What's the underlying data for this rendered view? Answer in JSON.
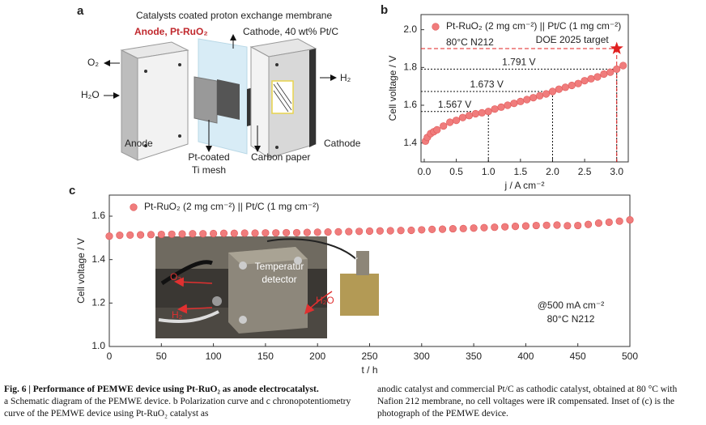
{
  "panel_a": {
    "letter": "a",
    "membrane_label": "Catalysts coated proton exchange membrane",
    "anode_catalyst": "Anode, Pt-RuO₂",
    "cathode_catalyst": "Cathode, 40 wt% Pt/C",
    "o2": "O₂",
    "h2o": "H₂O",
    "h2": "H₂",
    "anode": "Anode",
    "mesh": [
      "Pt-coated",
      "Ti mesh"
    ],
    "carbon_paper": "Carbon paper",
    "cathode": "Cathode"
  },
  "chart_data": [
    {
      "type": "scatter",
      "letter": "b",
      "xlabel": "j / A cm⁻²",
      "ylabel": "Cell voltage / V",
      "annotation": "80°C N212",
      "xlim": [
        -0.05,
        3.18
      ],
      "ylim": [
        1.3,
        2.08
      ],
      "xticks": [
        {
          "value": 0,
          "label": "0.0"
        },
        0.5,
        {
          "value": 1,
          "label": "1.0"
        },
        1.5,
        {
          "value": 2,
          "label": "2.0"
        },
        2.5,
        {
          "value": 3,
          "label": "3.0"
        }
      ],
      "yticks": [
        1.4,
        1.6,
        1.8,
        {
          "value": 2,
          "label": "2.0"
        }
      ],
      "series": [
        {
          "name": "Pt-RuO₂ (2 mg cm⁻²) || Pt/C (1 mg cm⁻²)",
          "color": "#f07c7c",
          "x": [
            0.02,
            0.05,
            0.1,
            0.15,
            0.2,
            0.3,
            0.4,
            0.5,
            0.6,
            0.7,
            0.8,
            0.9,
            1.0,
            1.1,
            1.2,
            1.3,
            1.4,
            1.5,
            1.6,
            1.7,
            1.8,
            1.9,
            2.0,
            2.1,
            2.2,
            2.3,
            2.4,
            2.5,
            2.6,
            2.7,
            2.8,
            2.9,
            3.0,
            3.1
          ],
          "values": [
            1.41,
            1.43,
            1.45,
            1.46,
            1.47,
            1.49,
            1.51,
            1.52,
            1.535,
            1.545,
            1.555,
            1.56,
            1.567,
            1.58,
            1.59,
            1.6,
            1.61,
            1.62,
            1.63,
            1.64,
            1.65,
            1.66,
            1.673,
            1.685,
            1.695,
            1.705,
            1.715,
            1.73,
            1.74,
            1.75,
            1.765,
            1.775,
            1.791,
            1.81
          ]
        }
      ],
      "markers": [
        {
          "x": 1.0,
          "y": 1.567,
          "label": "1.567 V"
        },
        {
          "x": 2.0,
          "y": 1.673,
          "label": "1.673 V"
        },
        {
          "x": 3.0,
          "y": 1.791,
          "label": "1.791 V"
        }
      ],
      "target": {
        "x": 3.0,
        "value": 1.9,
        "label": "DOE 2025 target",
        "color": "#e02020"
      }
    },
    {
      "type": "scatter",
      "letter": "c",
      "xlabel": "t / h",
      "ylabel": "Cell voltage / V",
      "annotation": [
        "@500 mA cm⁻²",
        "80°C N212"
      ],
      "xlim": [
        0,
        500
      ],
      "ylim": [
        1.0,
        1.697
      ],
      "xticks": [
        0,
        50,
        100,
        150,
        200,
        250,
        300,
        350,
        400,
        450,
        500
      ],
      "yticks": [
        {
          "value": 1,
          "label": "1.0"
        },
        1.2,
        1.4,
        1.6
      ],
      "series": [
        {
          "name": "Pt-RuO₂ (2 mg cm⁻²) || Pt/C (1 mg cm⁻²)",
          "color": "#f07c7c",
          "x": [
            0,
            10,
            20,
            30,
            40,
            50,
            60,
            70,
            80,
            90,
            100,
            110,
            120,
            130,
            140,
            150,
            160,
            170,
            180,
            190,
            200,
            210,
            220,
            230,
            240,
            250,
            260,
            270,
            280,
            290,
            300,
            310,
            320,
            330,
            340,
            350,
            360,
            370,
            380,
            390,
            400,
            410,
            420,
            430,
            440,
            450,
            460,
            470,
            480,
            490,
            500
          ],
          "values": [
            1.508,
            1.512,
            1.513,
            1.514,
            1.515,
            1.516,
            1.517,
            1.518,
            1.519,
            1.519,
            1.52,
            1.521,
            1.521,
            1.522,
            1.522,
            1.523,
            1.523,
            1.524,
            1.524,
            1.525,
            1.526,
            1.527,
            1.528,
            1.529,
            1.53,
            1.531,
            1.532,
            1.533,
            1.534,
            1.535,
            1.537,
            1.539,
            1.54,
            1.542,
            1.543,
            1.545,
            1.547,
            1.549,
            1.551,
            1.553,
            1.555,
            1.557,
            1.558,
            1.559,
            1.556,
            1.557,
            1.562,
            1.568,
            1.572,
            1.577,
            1.583
          ]
        }
      ],
      "inset": {
        "temperature": [
          "Temperatur",
          "detector"
        ],
        "heater": "Heater",
        "o2": "O₂",
        "h2": "H₂",
        "h2o": "H₂O"
      }
    }
  ],
  "caption": {
    "title": "Fig. 6 | Performance of PEMWE device using Pt-RuO₂ as anode electrocatalyst.",
    "left": "a Schematic diagram of the PEMWE device. b Polarization curve and c chronopotentiometry curve of the PEMWE device using Pt-RuO₂ catalyst as",
    "right": "anodic catalyst and commercial Pt/C as cathodic catalyst, obtained at 80 °C with Nafion 212 membrane, no cell voltages were iR compensated. Inset of (c) is the photograph of the PEMWE device."
  }
}
